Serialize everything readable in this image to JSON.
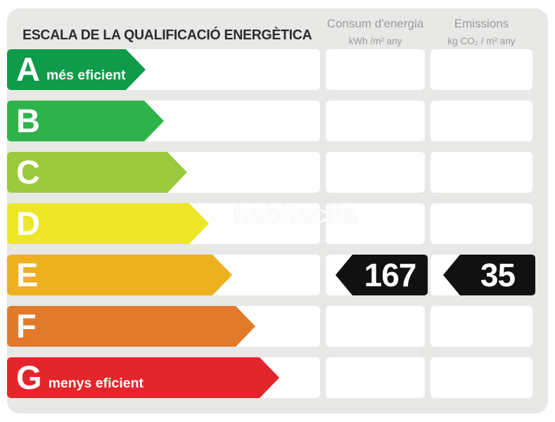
{
  "panel": {
    "title": "ESCALA DE LA QUALIFICACIÓ ENERGÈTICA",
    "watermark": "habitaclia"
  },
  "columns": {
    "consum": {
      "title": "Consum d'energia",
      "unit": "kWh /m²  any"
    },
    "emissions": {
      "title": "Emissions",
      "unit": "kg CO₂  / m²  any"
    }
  },
  "chart_data": {
    "type": "bar",
    "title": "ESCALA DE LA QUALIFICACIÓ ENERGÈTICA",
    "categories": [
      "A",
      "B",
      "C",
      "D",
      "E",
      "F",
      "G"
    ],
    "rating": "E",
    "values": {
      "consum_kwh_m2_any": 167,
      "emissions_kg_co2_m2_any": 35
    },
    "legend_top": "més eficient",
    "legend_bottom": "menys eficient",
    "badge_color": "#111111",
    "rows": [
      {
        "letter": "A",
        "label": "més eficient",
        "color": "#0f9b49",
        "arrow_width": 192,
        "consum": "",
        "emissions": ""
      },
      {
        "letter": "B",
        "label": "",
        "color": "#2eb34b",
        "arrow_width": 223,
        "consum": "",
        "emissions": ""
      },
      {
        "letter": "C",
        "label": "",
        "color": "#9aca3c",
        "arrow_width": 256,
        "consum": "",
        "emissions": ""
      },
      {
        "letter": "D",
        "label": "",
        "color": "#ede727",
        "arrow_width": 287,
        "consum": "",
        "emissions": ""
      },
      {
        "letter": "E",
        "label": "",
        "color": "#edb01f",
        "arrow_width": 320,
        "consum": "167",
        "emissions": "35"
      },
      {
        "letter": "F",
        "label": "",
        "color": "#e17a2b",
        "arrow_width": 353,
        "consum": "",
        "emissions": ""
      },
      {
        "letter": "G",
        "label": "menys eficient",
        "color": "#e3262b",
        "arrow_width": 387,
        "consum": "",
        "emissions": ""
      }
    ]
  }
}
